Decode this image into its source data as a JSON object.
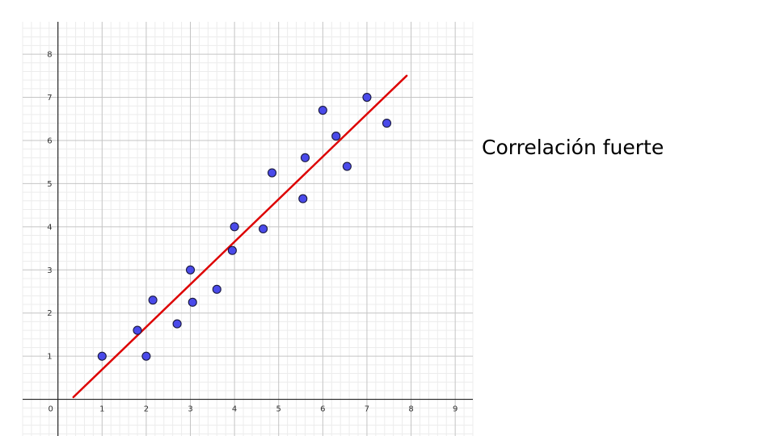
{
  "caption": "Correlación fuerte",
  "chart_data": {
    "type": "scatter",
    "title": "",
    "xlabel": "",
    "ylabel": "",
    "xlim": [
      -0.8,
      9.4
    ],
    "ylim": [
      -0.85,
      8.75
    ],
    "x_ticks": [
      "0",
      "1",
      "2",
      "3",
      "4",
      "5",
      "6",
      "7",
      "8",
      "9"
    ],
    "y_ticks": [
      "1",
      "2",
      "3",
      "4",
      "5",
      "6",
      "7",
      "8"
    ],
    "minor_grid_step": 0.2,
    "grid": true,
    "points": [
      {
        "x": 1.0,
        "y": 1.0
      },
      {
        "x": 1.8,
        "y": 1.6
      },
      {
        "x": 2.0,
        "y": 1.0
      },
      {
        "x": 2.15,
        "y": 2.3
      },
      {
        "x": 2.7,
        "y": 1.75
      },
      {
        "x": 3.0,
        "y": 3.0
      },
      {
        "x": 3.05,
        "y": 2.25
      },
      {
        "x": 3.6,
        "y": 2.55
      },
      {
        "x": 3.95,
        "y": 3.45
      },
      {
        "x": 4.0,
        "y": 4.0
      },
      {
        "x": 4.65,
        "y": 3.95
      },
      {
        "x": 4.85,
        "y": 5.25
      },
      {
        "x": 5.55,
        "y": 4.65
      },
      {
        "x": 5.6,
        "y": 5.6
      },
      {
        "x": 6.0,
        "y": 6.7
      },
      {
        "x": 6.3,
        "y": 6.1
      },
      {
        "x": 6.55,
        "y": 5.4
      },
      {
        "x": 7.0,
        "y": 7.0
      },
      {
        "x": 7.45,
        "y": 6.4
      }
    ],
    "trend_line": {
      "x1": 0.35,
      "y1": 0.05,
      "x2": 7.9,
      "y2": 7.5
    },
    "colors": {
      "point_fill": "#4a4aea",
      "point_stroke": "#1a1a40",
      "trend_line": "#dd0000",
      "major_grid": "#c4c4c4",
      "minor_grid": "#ececec",
      "axis": "#222222"
    }
  }
}
